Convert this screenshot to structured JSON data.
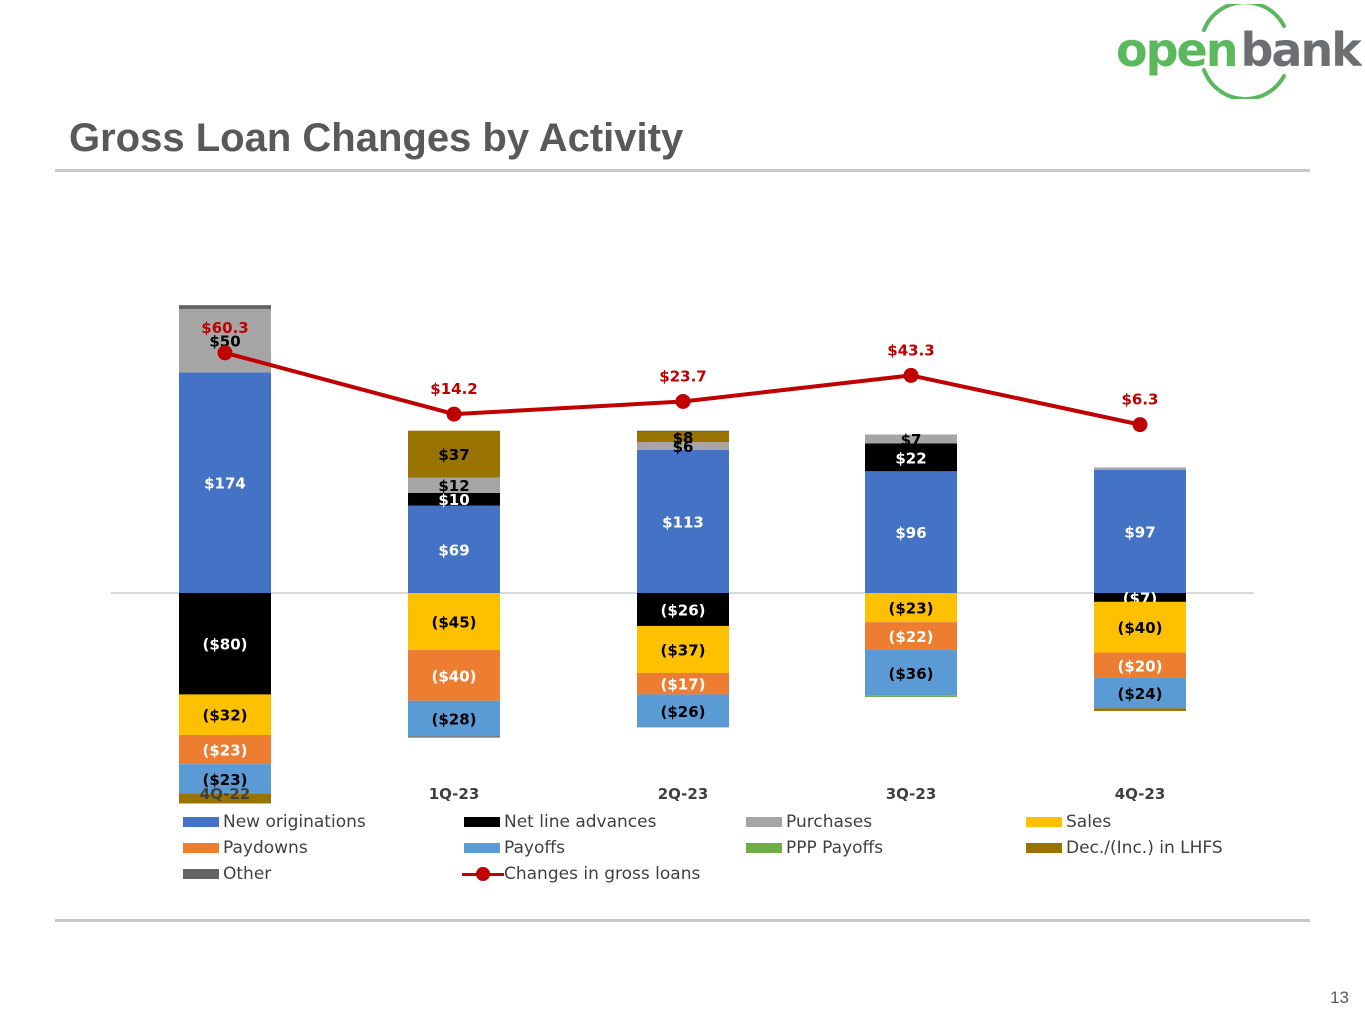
{
  "logo": {
    "part1": "open",
    "part2": "bank",
    "color1": "#5cb85c",
    "color2": "#6d6e71",
    "arc_color": "#5cb85c"
  },
  "title": "Gross Loan Changes by Activity",
  "page_number": "13",
  "chart_data": {
    "type": "bar",
    "stacked": true,
    "title": "Gross Loan Changes by Activity",
    "categories": [
      "4Q-22",
      "1Q-23",
      "2Q-23",
      "3Q-23",
      "4Q-23"
    ],
    "series": [
      {
        "name": "New originations",
        "color": "#4472c4",
        "values": [
          174,
          69,
          113,
          96,
          97
        ],
        "labels": [
          "$174",
          "$69",
          "$113",
          "$96",
          "$97"
        ],
        "label_color": "#ffffff"
      },
      {
        "name": "Net line advances",
        "color": "#000000",
        "values": [
          -80,
          10,
          -26,
          22,
          -7
        ],
        "labels": [
          "($80)",
          "$10",
          "($26)",
          "$22",
          "($7)"
        ],
        "label_color": "#ffffff"
      },
      {
        "name": "Purchases",
        "color": "#a5a5a5",
        "values": [
          50,
          12,
          6,
          7,
          2
        ],
        "labels": [
          "$50",
          "$12",
          "$6",
          "$7",
          ""
        ],
        "label_color": "#000000"
      },
      {
        "name": "Sales",
        "color": "#ffc000",
        "values": [
          -32,
          -45,
          -37,
          -23,
          -40
        ],
        "labels": [
          "($32)",
          "($45)",
          "($37)",
          "($23)",
          "($40)"
        ],
        "label_color": "#000000"
      },
      {
        "name": "Paydowns",
        "color": "#ed7d31",
        "values": [
          -23,
          -40,
          -17,
          -22,
          -20
        ],
        "labels": [
          "($23)",
          "($40)",
          "($17)",
          "($22)",
          "($20)"
        ],
        "label_color": "#ffffff"
      },
      {
        "name": "Payoffs",
        "color": "#5b9bd5",
        "values": [
          -23,
          -28,
          -26,
          -36,
          -24
        ],
        "labels": [
          "($23)",
          "($28)",
          "($26)",
          "($36)",
          "($24)"
        ],
        "label_color": "#000000"
      },
      {
        "name": "PPP Payoffs",
        "color": "#70ad47",
        "values": [
          0,
          0,
          0,
          -1,
          0
        ],
        "labels": [
          "",
          "",
          "",
          "",
          ""
        ],
        "label_color": "#000000"
      },
      {
        "name": "Dec./(Inc.) in LHFS",
        "color": "#997300",
        "values": [
          -8,
          37,
          8,
          0,
          -2
        ],
        "labels": [
          "",
          "$37",
          "$8",
          "",
          ""
        ],
        "label_color": "#000000"
      },
      {
        "name": "Other",
        "color": "#636363",
        "values": [
          3,
          -1,
          1,
          0,
          0
        ],
        "labels": [
          "",
          "",
          "",
          "",
          ""
        ],
        "label_color": "#000000"
      }
    ],
    "line": {
      "name": "Changes in gross loans",
      "color": "#c00000",
      "values": [
        60.3,
        14.2,
        23.7,
        43.3,
        6.3
      ],
      "labels": [
        "$60.3",
        "$14.2",
        "$23.7",
        "$43.3",
        "$6.3"
      ]
    },
    "legend": {
      "position": "bottom",
      "entries": [
        "New originations",
        "Net line advances",
        "Purchases",
        "Sales",
        "Paydowns",
        "Payoffs",
        "PPP Payoffs",
        "Dec./(Inc.) in LHFS",
        "Other",
        "Changes in gross loans"
      ]
    }
  }
}
